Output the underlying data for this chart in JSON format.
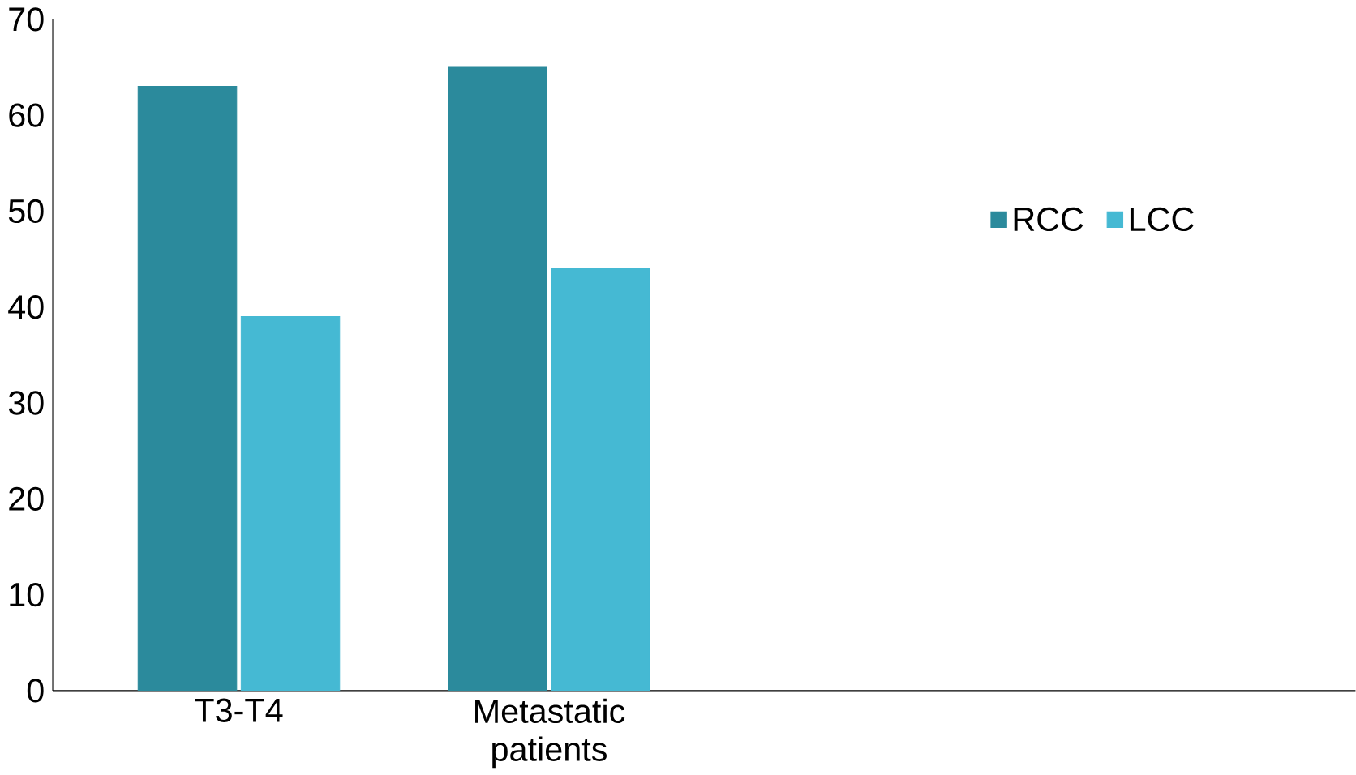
{
  "chart_data": {
    "type": "bar",
    "categories": [
      "T3-T4",
      "Metastatic patients"
    ],
    "series": [
      {
        "name": "RCC",
        "color": "#2b8a9c",
        "values": [
          63,
          65
        ]
      },
      {
        "name": "LCC",
        "color": "#45b9d3",
        "values": [
          39,
          44
        ]
      }
    ],
    "ylim": [
      0,
      70
    ],
    "yticks": [
      0,
      10,
      20,
      30,
      40,
      50,
      60,
      70
    ],
    "grid": false,
    "legend": "right"
  }
}
